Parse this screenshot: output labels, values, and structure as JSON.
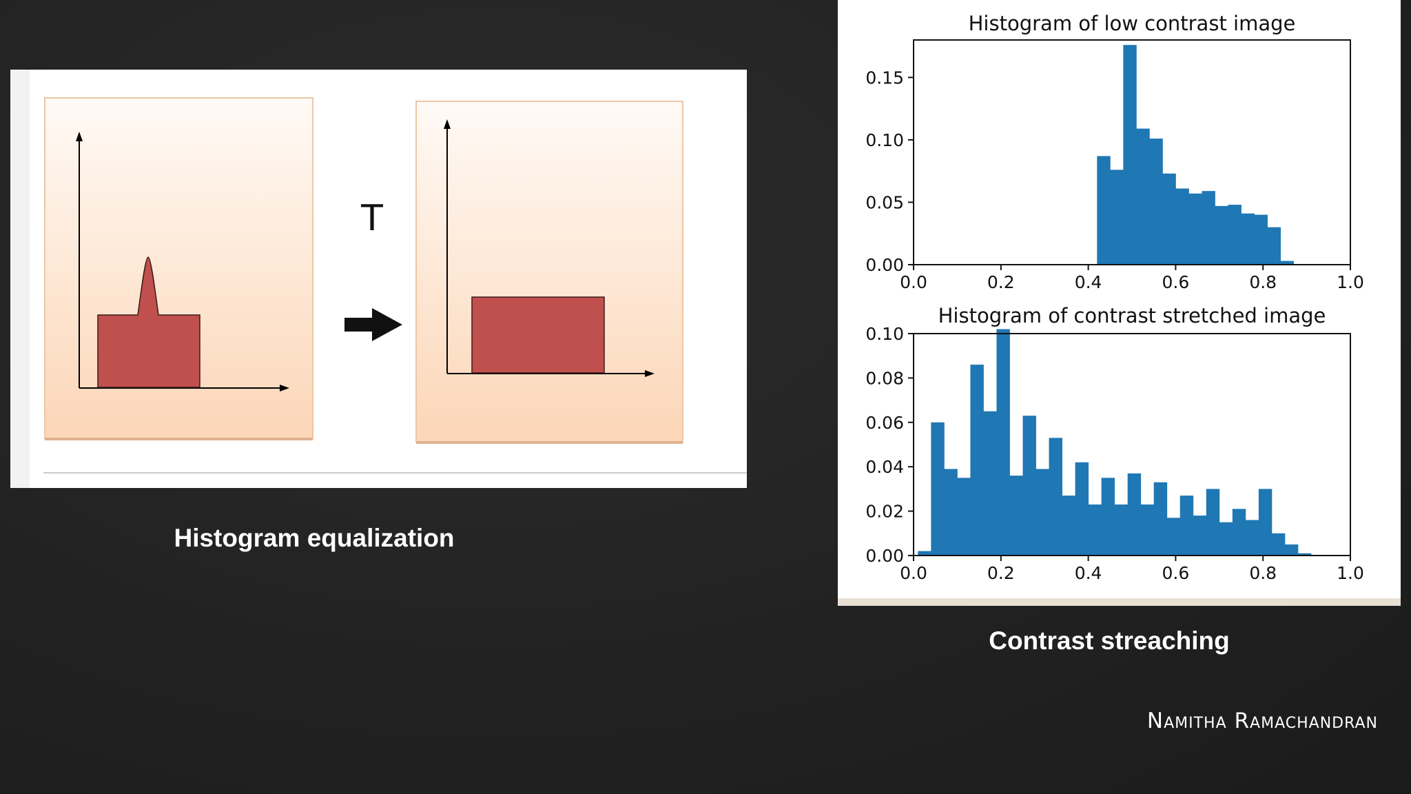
{
  "slide": {
    "left_caption": "Histogram equalization",
    "right_caption": "Contrast streaching",
    "author": "Namitha Ramachandran"
  },
  "equalization_diagram": {
    "transform_label": "T",
    "box_color_top": "#fffaf6",
    "box_color_bottom": "#fcd6b7",
    "bar_color": "#c0504d"
  },
  "chart_data": [
    {
      "type": "bar",
      "title": "Histogram of low contrast image",
      "xlabel": "",
      "ylabel": "",
      "xlim": [
        0.0,
        1.0
      ],
      "ylim": [
        0.0,
        0.18
      ],
      "xticks": [
        "0.0",
        "0.2",
        "0.4",
        "0.6",
        "0.8",
        "1.0"
      ],
      "yticks": [
        "0.00",
        "0.05",
        "0.10",
        "0.15"
      ],
      "color": "#1f77b4",
      "bin_width": 0.03,
      "bin_starts": [
        0.42,
        0.45,
        0.48,
        0.51,
        0.54,
        0.57,
        0.6,
        0.63,
        0.66,
        0.69,
        0.72,
        0.75,
        0.78,
        0.81,
        0.84,
        0.87
      ],
      "values": [
        0.087,
        0.076,
        0.176,
        0.109,
        0.101,
        0.073,
        0.061,
        0.057,
        0.059,
        0.047,
        0.048,
        0.041,
        0.04,
        0.03,
        0.003,
        0.0
      ]
    },
    {
      "type": "bar",
      "title": "Histogram of contrast stretched image",
      "xlabel": "",
      "ylabel": "",
      "xlim": [
        0.0,
        1.0
      ],
      "ylim": [
        0.0,
        0.1
      ],
      "xticks": [
        "0.0",
        "0.2",
        "0.4",
        "0.6",
        "0.8",
        "1.0"
      ],
      "yticks": [
        "0.00",
        "0.02",
        "0.04",
        "0.06",
        "0.08",
        "0.10"
      ],
      "color": "#1f77b4",
      "bin_width": 0.03,
      "bin_starts": [
        0.01,
        0.04,
        0.07,
        0.1,
        0.13,
        0.16,
        0.19,
        0.22,
        0.25,
        0.28,
        0.31,
        0.34,
        0.37,
        0.4,
        0.43,
        0.46,
        0.49,
        0.52,
        0.55,
        0.58,
        0.61,
        0.64,
        0.67,
        0.7,
        0.73,
        0.76,
        0.79,
        0.82,
        0.85,
        0.88,
        0.91
      ],
      "values": [
        0.002,
        0.06,
        0.039,
        0.035,
        0.086,
        0.065,
        0.102,
        0.036,
        0.063,
        0.039,
        0.053,
        0.027,
        0.042,
        0.023,
        0.035,
        0.023,
        0.037,
        0.023,
        0.033,
        0.017,
        0.027,
        0.018,
        0.03,
        0.015,
        0.021,
        0.016,
        0.03,
        0.01,
        0.005,
        0.001,
        0.0
      ]
    }
  ]
}
